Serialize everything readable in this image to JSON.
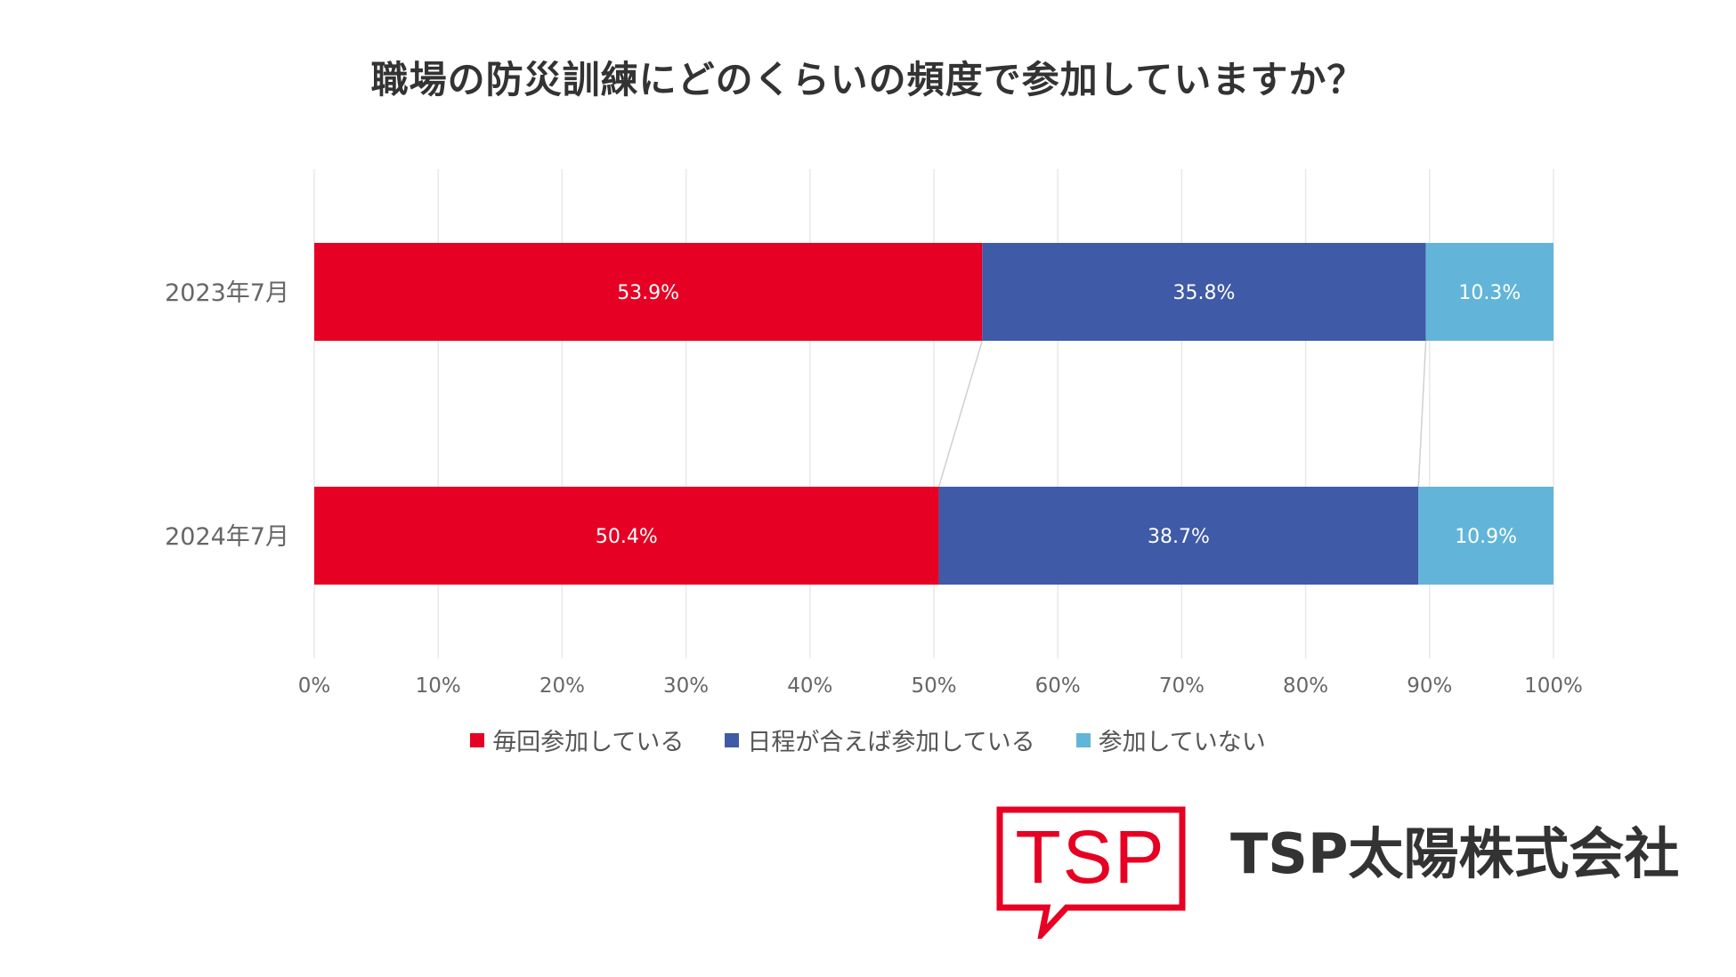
{
  "chart_data": {
    "type": "bar",
    "orientation": "horizontal",
    "stacked": true,
    "title": "職場の防災訓練にどのくらいの頻度で参加していますか？",
    "categories": [
      "2023年7月",
      "2024年7月"
    ],
    "series": [
      {
        "name": "毎回参加している",
        "values": [
          53.9,
          50.4
        ],
        "labels": [
          "53.9%",
          "50.4%"
        ],
        "color": "#e60023"
      },
      {
        "name": "日程が合えば参加している",
        "values": [
          35.8,
          38.7
        ],
        "labels": [
          "35.8%",
          "38.7%"
        ],
        "color": "#3f5aa6"
      },
      {
        "name": "参加していない",
        "values": [
          10.3,
          10.9
        ],
        "labels": [
          "10.3%",
          "10.9%"
        ],
        "color": "#62b5d9"
      }
    ],
    "x_ticks": [
      "0%",
      "10%",
      "20%",
      "30%",
      "40%",
      "50%",
      "60%",
      "70%",
      "80%",
      "90%",
      "100%"
    ],
    "xlim": [
      0,
      100
    ],
    "grid": true,
    "connector_lines": true,
    "legend_position": "bottom"
  },
  "branding": {
    "logo_text": "TSP",
    "company_name": "TSP太陽株式会社",
    "brand_color": "#e60023"
  }
}
